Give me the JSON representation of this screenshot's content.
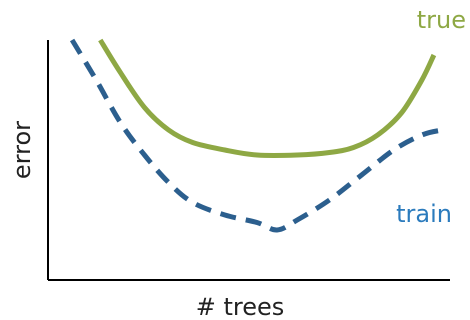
{
  "chart_data": {
    "type": "line",
    "title": "",
    "xlabel": "# trees",
    "ylabel": "error",
    "grid": false,
    "ticks": false,
    "series": [
      {
        "name": "true",
        "color": "#8ea844",
        "style": "solid",
        "points": [
          [
            0.13,
            0.96
          ],
          [
            0.18,
            0.83
          ],
          [
            0.24,
            0.69
          ],
          [
            0.3,
            0.6
          ],
          [
            0.36,
            0.55
          ],
          [
            0.44,
            0.52
          ],
          [
            0.52,
            0.5
          ],
          [
            0.62,
            0.5
          ],
          [
            0.7,
            0.51
          ],
          [
            0.76,
            0.53
          ],
          [
            0.82,
            0.58
          ],
          [
            0.88,
            0.67
          ],
          [
            0.93,
            0.8
          ],
          [
            0.96,
            0.9
          ]
        ]
      },
      {
        "name": "train",
        "color": "#2c5f8e",
        "style": "dashed",
        "points": [
          [
            0.06,
            0.96
          ],
          [
            0.12,
            0.8
          ],
          [
            0.18,
            0.63
          ],
          [
            0.24,
            0.5
          ],
          [
            0.3,
            0.39
          ],
          [
            0.36,
            0.31
          ],
          [
            0.44,
            0.26
          ],
          [
            0.52,
            0.23
          ],
          [
            0.57,
            0.2
          ],
          [
            0.62,
            0.24
          ],
          [
            0.7,
            0.32
          ],
          [
            0.78,
            0.42
          ],
          [
            0.86,
            0.52
          ],
          [
            0.93,
            0.58
          ],
          [
            0.98,
            0.6
          ]
        ]
      }
    ]
  }
}
